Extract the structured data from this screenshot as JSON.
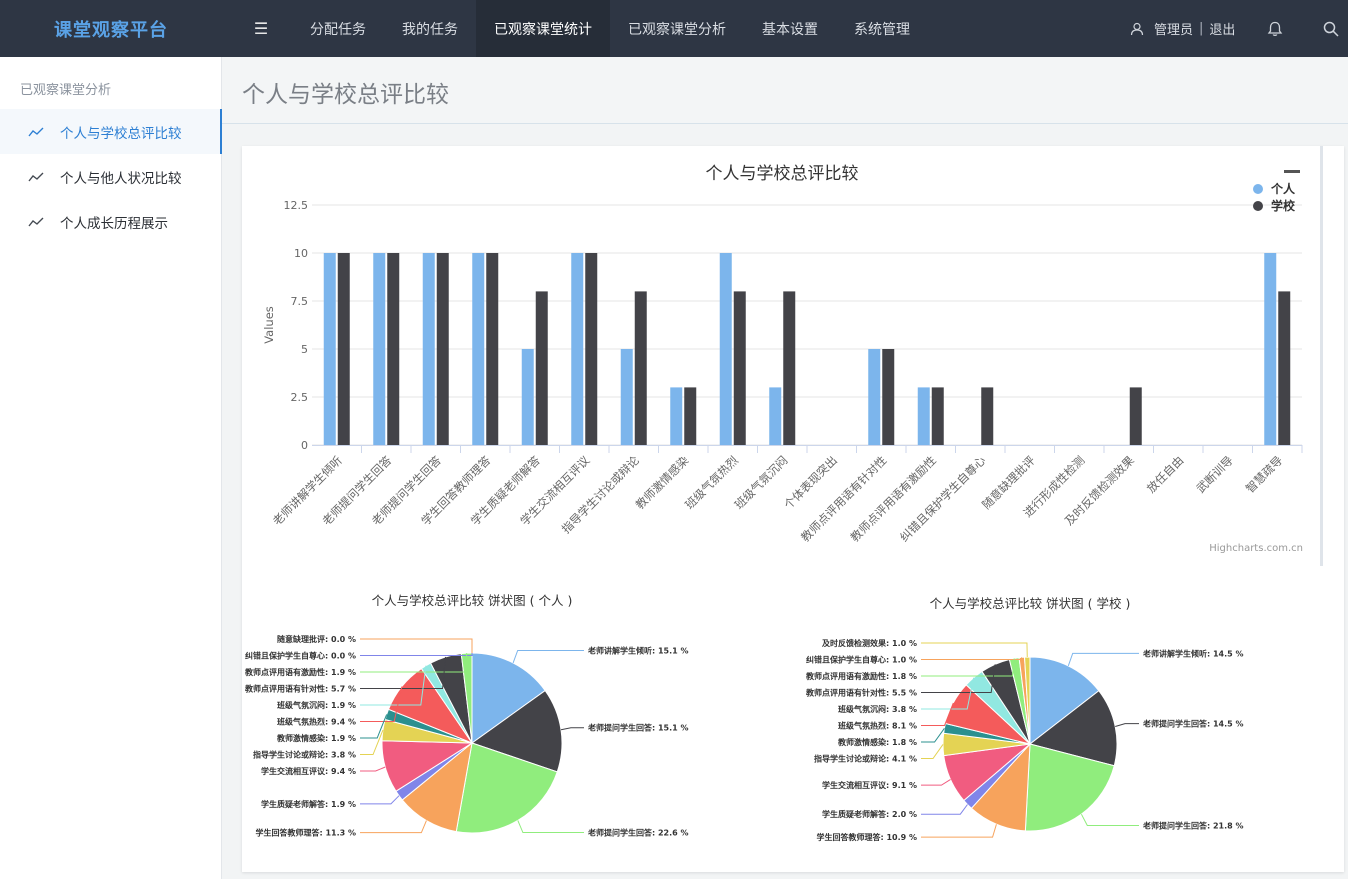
{
  "brand": "课堂观察平台",
  "nav": {
    "items": [
      "分配任务",
      "我的任务",
      "已观察课堂统计",
      "已观察课堂分析",
      "基本设置",
      "系统管理"
    ],
    "active_index": 2
  },
  "user": {
    "name": "管理员",
    "separator": "|",
    "logout": "退出"
  },
  "sidebar": {
    "title": "已观察课堂分析",
    "items": [
      {
        "label": "个人与学校总评比较",
        "active": true
      },
      {
        "label": "个人与他人状况比较",
        "active": false
      },
      {
        "label": "个人成长历程展示",
        "active": false
      }
    ]
  },
  "page_title": "个人与学校总评比较",
  "credit": "Highcharts.com.cn",
  "colors": {
    "personal": "#7cb5ec",
    "school": "#434348",
    "accent": "#2d7fd3"
  },
  "chart_data": [
    {
      "type": "bar",
      "title": "个人与学校总评比较",
      "ylabel": "Values",
      "ylim": [
        0,
        12.5
      ],
      "yticks": [
        0,
        2.5,
        5,
        7.5,
        10,
        12.5
      ],
      "legend": "top-right",
      "categories": [
        "老师讲解学生倾听",
        "老师提问学生回答",
        "老师提问学生回答",
        "学生回答教师理答",
        "学生质疑老师解答",
        "学生交流相互评议",
        "指导学生讨论或辩论",
        "教师激情感染",
        "班级气氛热烈",
        "班级气氛沉闷",
        "个体表现突出",
        "教师点评用语有针对性",
        "教师点评用语有激励性",
        "纠错且保护学生自尊心",
        "随意缺理批评",
        "进行形成性检测",
        "及时反馈检测效果",
        "放任自由",
        "武断训导",
        "智慧疏导"
      ],
      "series": [
        {
          "name": "个人",
          "values": [
            10,
            10,
            10,
            10,
            5,
            10,
            5,
            3,
            10,
            3,
            0,
            5,
            3,
            0,
            0,
            0,
            0,
            0,
            0,
            10
          ]
        },
        {
          "name": "学校",
          "values": [
            10,
            10,
            10,
            10,
            8,
            10,
            8,
            3,
            8,
            8,
            0,
            5,
            3,
            3,
            0,
            0,
            3,
            0,
            0,
            8
          ]
        }
      ]
    },
    {
      "type": "pie",
      "title": "个人与学校总评比较 饼状图 ( 个人 )",
      "slices": [
        {
          "label": "老师讲解学生倾听",
          "value": 15.1,
          "color": "#7cb5ec"
        },
        {
          "label": "老师提问学生回答",
          "value": 15.1,
          "color": "#434348"
        },
        {
          "label": "老师提问学生回答",
          "value": 22.6,
          "color": "#90ed7d"
        },
        {
          "label": "学生回答教师理答",
          "value": 11.3,
          "color": "#f7a35c"
        },
        {
          "label": "学生质疑老师解答",
          "value": 1.9,
          "color": "#8085e9"
        },
        {
          "label": "学生交流相互评议",
          "value": 9.4,
          "color": "#f15c80"
        },
        {
          "label": "指导学生讨论或辩论",
          "value": 3.8,
          "color": "#e4d354"
        },
        {
          "label": "教师激情感染",
          "value": 1.9,
          "color": "#2b908f"
        },
        {
          "label": "班级气氛热烈",
          "value": 9.4,
          "color": "#f45b5b"
        },
        {
          "label": "班级气氛沉闷",
          "value": 1.9,
          "color": "#91e8e1"
        },
        {
          "label": "教师点评用语有针对性",
          "value": 5.7,
          "color": "#434348"
        },
        {
          "label": "教师点评用语有激励性",
          "value": 1.9,
          "color": "#90ed7d"
        },
        {
          "label": "随意缺理批评",
          "value": 0.0,
          "color": "#f7a35c"
        },
        {
          "label": "纠错且保护学生自尊心",
          "value": 0.0,
          "color": "#8085e9"
        }
      ]
    },
    {
      "type": "pie",
      "title": "个人与学校总评比较 饼状图 ( 学校 )",
      "slices": [
        {
          "label": "老师讲解学生倾听",
          "value": 14.5,
          "color": "#7cb5ec"
        },
        {
          "label": "老师提问学生回答",
          "value": 14.5,
          "color": "#434348"
        },
        {
          "label": "老师提问学生回答",
          "value": 21.8,
          "color": "#90ed7d"
        },
        {
          "label": "学生回答教师理答",
          "value": 10.9,
          "color": "#f7a35c"
        },
        {
          "label": "学生质疑老师解答",
          "value": 2.0,
          "color": "#8085e9"
        },
        {
          "label": "学生交流相互评议",
          "value": 9.1,
          "color": "#f15c80"
        },
        {
          "label": "指导学生讨论或辩论",
          "value": 4.1,
          "color": "#e4d354"
        },
        {
          "label": "教师激情感染",
          "value": 1.8,
          "color": "#2b908f"
        },
        {
          "label": "班级气氛热烈",
          "value": 8.1,
          "color": "#f45b5b"
        },
        {
          "label": "班级气氛沉闷",
          "value": 3.8,
          "color": "#91e8e1"
        },
        {
          "label": "教师点评用语有针对性",
          "value": 5.5,
          "color": "#434348"
        },
        {
          "label": "教师点评用语有激励性",
          "value": 1.8,
          "color": "#90ed7d"
        },
        {
          "label": "纠错且保护学生自尊心",
          "value": 1.0,
          "color": "#f7a35c"
        },
        {
          "label": "及时反馈检测效果",
          "value": 1.0,
          "color": "#e4d354"
        }
      ]
    }
  ]
}
